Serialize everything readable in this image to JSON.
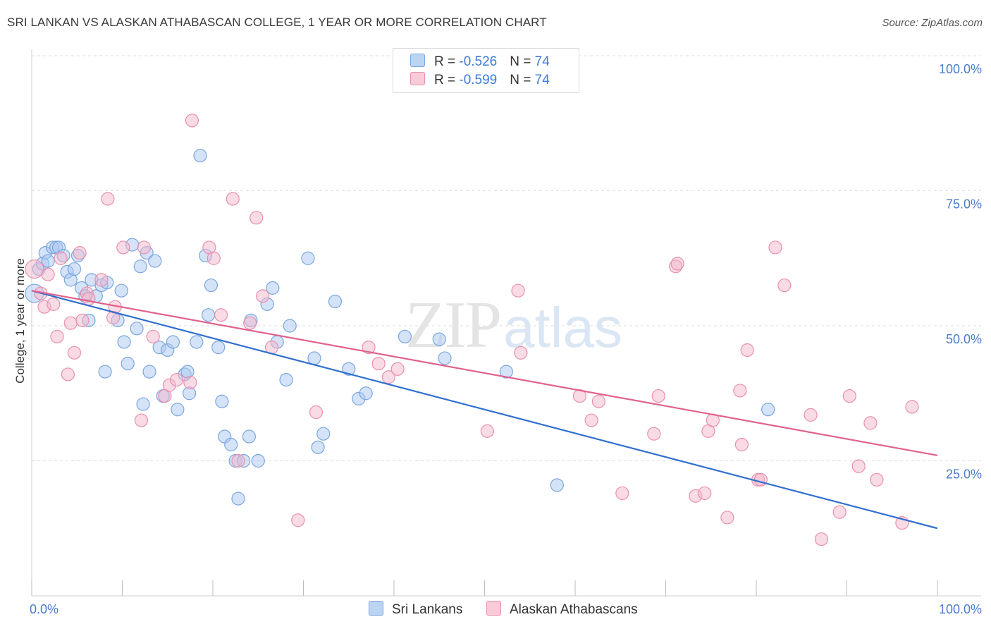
{
  "header": {
    "title": "SRI LANKAN VS ALASKAN ATHABASCAN COLLEGE, 1 YEAR OR MORE CORRELATION CHART",
    "source": "Source: ZipAtlas.com"
  },
  "legend": {
    "rows": [
      {
        "r_label": "R = ",
        "r_value": "-0.526",
        "n_label": "N = ",
        "n_value": "74"
      },
      {
        "r_label": "R = ",
        "r_value": "-0.599",
        "n_label": "N = ",
        "n_value": "74"
      }
    ]
  },
  "watermark": {
    "zip": "ZIP",
    "atlas": "atlas"
  },
  "colors": {
    "blue_fill": "#a9c8f0",
    "blue_stroke": "#7aa6e0",
    "blue_line": "#2f6fcf",
    "pink_fill": "#f4b8cb",
    "pink_stroke": "#e98fae",
    "pink_line": "#e0628d",
    "tick_text": "#4a7cc9",
    "grid": "#dddddd"
  },
  "chart_data": {
    "type": "scatter",
    "title": "SRI LANKAN VS ALASKAN ATHABASCAN COLLEGE, 1 YEAR OR MORE CORRELATION CHART",
    "xlabel": "",
    "ylabel": "College, 1 year or more",
    "xlim": [
      0,
      100
    ],
    "ylim": [
      0,
      100
    ],
    "x_tick_labels": [
      "0.0%",
      "100.0%"
    ],
    "y_ticks": [
      {
        "value": 25,
        "label": "25.0%"
      },
      {
        "value": 50,
        "label": "50.0%"
      },
      {
        "value": 75,
        "label": "75.0%"
      },
      {
        "value": 100,
        "label": "100.0%"
      }
    ],
    "grid": true,
    "legend_position": "bottom",
    "series": [
      {
        "name": "Sri Lankans",
        "color": "#a9c8f0",
        "trend": {
          "x0": 0,
          "y0": 56.5,
          "x1": 100,
          "y1": 12.5
        },
        "points": [
          [
            0.3,
            56
          ],
          [
            0.8,
            60.5
          ],
          [
            1.2,
            61.5
          ],
          [
            1.5,
            63.5
          ],
          [
            1.8,
            62
          ],
          [
            2.3,
            64.5
          ],
          [
            2.7,
            64.5
          ],
          [
            3,
            64.5
          ],
          [
            3.5,
            63
          ],
          [
            3.9,
            60
          ],
          [
            4.3,
            58.5
          ],
          [
            4.7,
            60.5
          ],
          [
            5.1,
            63
          ],
          [
            5.5,
            57
          ],
          [
            5.9,
            55.5
          ],
          [
            6.3,
            51
          ],
          [
            6.6,
            58.5
          ],
          [
            7.1,
            55.5
          ],
          [
            7.7,
            57.5
          ],
          [
            8.3,
            58
          ],
          [
            8.1,
            41.5
          ],
          [
            9.5,
            51
          ],
          [
            9.9,
            56.5
          ],
          [
            10.2,
            47
          ],
          [
            10.6,
            43
          ],
          [
            11.1,
            65
          ],
          [
            11.6,
            49.5
          ],
          [
            12,
            61
          ],
          [
            12.3,
            35.5
          ],
          [
            12.7,
            63.5
          ],
          [
            13,
            41.5
          ],
          [
            13.6,
            62
          ],
          [
            14.1,
            46
          ],
          [
            14.5,
            37
          ],
          [
            15,
            45.5
          ],
          [
            15.6,
            47
          ],
          [
            16.1,
            34.5
          ],
          [
            16.9,
            41
          ],
          [
            17.2,
            41.5
          ],
          [
            17.4,
            37.5
          ],
          [
            18.2,
            47
          ],
          [
            18.6,
            81.5
          ],
          [
            19.2,
            63
          ],
          [
            19.5,
            52
          ],
          [
            19.8,
            57.5
          ],
          [
            20.6,
            46
          ],
          [
            21,
            36
          ],
          [
            21.3,
            29.5
          ],
          [
            22,
            28
          ],
          [
            22.5,
            25
          ],
          [
            22.8,
            18
          ],
          [
            23.4,
            25
          ],
          [
            24,
            29.5
          ],
          [
            24.2,
            51
          ],
          [
            25,
            25
          ],
          [
            26,
            54
          ],
          [
            26.6,
            57
          ],
          [
            27.1,
            47
          ],
          [
            28.1,
            40
          ],
          [
            30.5,
            62.5
          ],
          [
            31.2,
            44
          ],
          [
            31.6,
            27.5
          ],
          [
            32.2,
            30
          ],
          [
            33.5,
            54.5
          ],
          [
            35,
            42
          ],
          [
            36.1,
            36.5
          ],
          [
            36.9,
            37.5
          ],
          [
            41.2,
            48
          ],
          [
            45,
            47.5
          ],
          [
            45.6,
            44
          ],
          [
            52.4,
            41.5
          ],
          [
            58,
            20.5
          ],
          [
            81.3,
            34.5
          ],
          [
            28.5,
            50
          ]
        ]
      },
      {
        "name": "Alaskan Athabascans",
        "color": "#f4b8cb",
        "trend": {
          "x0": 0,
          "y0": 56.5,
          "x1": 100,
          "y1": 26
        },
        "points": [
          [
            0.3,
            60.5
          ],
          [
            1,
            56
          ],
          [
            1.4,
            53.5
          ],
          [
            1.8,
            59.5
          ],
          [
            2.4,
            54
          ],
          [
            2.8,
            48
          ],
          [
            3.2,
            62.5
          ],
          [
            4,
            41
          ],
          [
            4.3,
            50.5
          ],
          [
            4.7,
            45
          ],
          [
            5.3,
            63.5
          ],
          [
            5.6,
            51
          ],
          [
            6.1,
            56
          ],
          [
            6.3,
            55
          ],
          [
            7.7,
            58.5
          ],
          [
            8.4,
            73.5
          ],
          [
            9,
            51.5
          ],
          [
            9.2,
            53.5
          ],
          [
            10.1,
            64.5
          ],
          [
            12.1,
            32.5
          ],
          [
            12.4,
            64.5
          ],
          [
            13.4,
            48
          ],
          [
            14.7,
            37
          ],
          [
            15.2,
            39
          ],
          [
            16,
            40
          ],
          [
            17.5,
            39.5
          ],
          [
            17.7,
            88
          ],
          [
            19.6,
            64.5
          ],
          [
            20.1,
            62.5
          ],
          [
            20.9,
            52
          ],
          [
            22.2,
            73.5
          ],
          [
            22.8,
            25
          ],
          [
            24.1,
            50.5
          ],
          [
            24.8,
            70
          ],
          [
            25.5,
            55.5
          ],
          [
            26.5,
            46
          ],
          [
            29.4,
            14
          ],
          [
            31.4,
            34
          ],
          [
            37.2,
            46
          ],
          [
            38.3,
            43
          ],
          [
            39.4,
            40.5
          ],
          [
            40.4,
            42
          ],
          [
            50.3,
            30.5
          ],
          [
            53.7,
            56.5
          ],
          [
            54,
            45
          ],
          [
            60.5,
            37
          ],
          [
            61.8,
            32.5
          ],
          [
            62.6,
            36
          ],
          [
            65.2,
            19
          ],
          [
            68.7,
            30
          ],
          [
            69.2,
            37
          ],
          [
            71.1,
            61
          ],
          [
            71.3,
            61.5
          ],
          [
            73.3,
            18.5
          ],
          [
            74.3,
            19
          ],
          [
            74.7,
            30.5
          ],
          [
            75.2,
            32.5
          ],
          [
            76.8,
            14.5
          ],
          [
            78.2,
            38
          ],
          [
            78.4,
            28
          ],
          [
            79,
            45.5
          ],
          [
            80.2,
            21.5
          ],
          [
            80.5,
            21.5
          ],
          [
            82.1,
            64.5
          ],
          [
            83.1,
            57.5
          ],
          [
            86,
            33.5
          ],
          [
            87.2,
            10.5
          ],
          [
            89.2,
            15.5
          ],
          [
            90.3,
            37
          ],
          [
            91.3,
            24
          ],
          [
            92.6,
            32
          ],
          [
            93.3,
            21.5
          ],
          [
            96.1,
            13.5
          ],
          [
            97.2,
            35
          ]
        ]
      }
    ]
  }
}
